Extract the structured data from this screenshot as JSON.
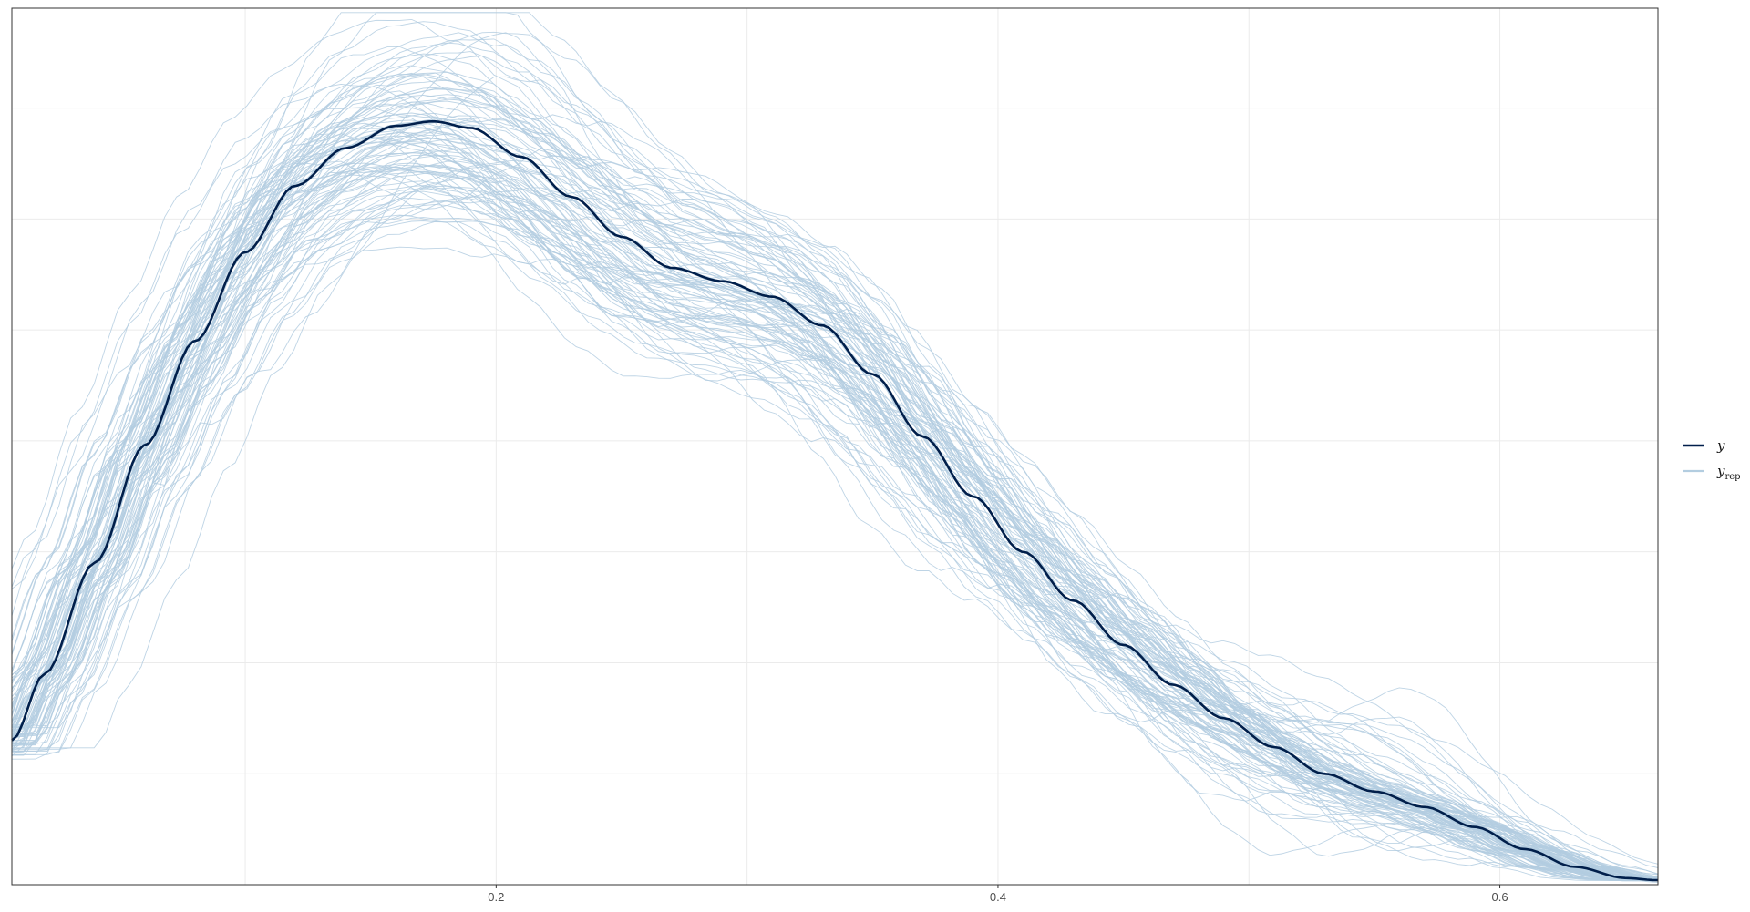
{
  "chart_data": {
    "type": "line",
    "title": "",
    "xlabel": "",
    "ylabel": "",
    "xlim": [
      0.007,
      0.663
    ],
    "ylim": [
      0,
      3.95
    ],
    "x_ticks": [
      0.2,
      0.4,
      0.6
    ],
    "x_tick_labels": [
      "0.2",
      "0.4",
      "0.6"
    ],
    "y_ticks_labeled": false,
    "grid": true,
    "legend": {
      "position": "right",
      "entries": [
        {
          "key": "y",
          "label": "y",
          "subscript": "",
          "color": "#011f4b"
        },
        {
          "key": "yrep",
          "label": "y",
          "subscript": "rep",
          "color": "#b3cde0"
        }
      ]
    },
    "colors": {
      "y": "#011f4b",
      "yrep": "#b3cde0",
      "grid": "#ebebeb",
      "panel_border": "#333333"
    },
    "series": [
      {
        "key": "y",
        "name": "y",
        "x": [
          0.007,
          0.02,
          0.04,
          0.06,
          0.08,
          0.1,
          0.12,
          0.14,
          0.16,
          0.175,
          0.19,
          0.21,
          0.23,
          0.25,
          0.27,
          0.29,
          0.31,
          0.33,
          0.35,
          0.37,
          0.39,
          0.41,
          0.43,
          0.45,
          0.47,
          0.49,
          0.51,
          0.53,
          0.55,
          0.57,
          0.59,
          0.61,
          0.63,
          0.65,
          0.663
        ],
        "y": [
          0.65,
          0.95,
          1.45,
          1.98,
          2.45,
          2.85,
          3.15,
          3.32,
          3.42,
          3.44,
          3.41,
          3.28,
          3.1,
          2.92,
          2.78,
          2.72,
          2.65,
          2.52,
          2.3,
          2.02,
          1.75,
          1.5,
          1.28,
          1.08,
          0.9,
          0.75,
          0.62,
          0.5,
          0.42,
          0.35,
          0.26,
          0.16,
          0.08,
          0.03,
          0.02
        ]
      }
    ],
    "yrep_draws": {
      "name": "yrep",
      "count": 100,
      "x_range": [
        0.007,
        0.663
      ]
    }
  }
}
